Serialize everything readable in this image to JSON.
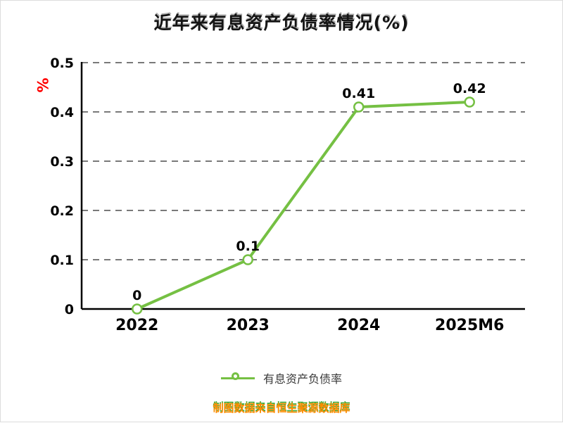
{
  "title": "近年来有息资产负债率情况(%)",
  "footer": "制图数据来自恒生聚源数据库",
  "y_axis_label": "%",
  "legend": {
    "label": "有息资产负债率"
  },
  "chart_data": {
    "type": "line",
    "title": "近年来有息资产负债率情况(%)",
    "categories": [
      "2022",
      "2023",
      "2024",
      "2025M6"
    ],
    "series": [
      {
        "name": "有息资产负债率",
        "values": [
          0,
          0.1,
          0.41,
          0.42
        ],
        "point_labels": [
          "0",
          "0.1",
          "0.41",
          "0.42"
        ],
        "color": "#75c043"
      }
    ],
    "xlabel": "",
    "ylabel": "%",
    "ylim": [
      0,
      0.5
    ],
    "yticks": [
      0,
      0.1,
      0.2,
      0.3,
      0.4,
      0.5
    ],
    "ytick_labels": [
      "0",
      "0.1",
      "0.2",
      "0.3",
      "0.4",
      "0.5"
    ],
    "grid": "horizontal-dashed",
    "legend_position": "bottom",
    "colors": {
      "line": "#75c043",
      "marker_fill": "#ffffff",
      "axis": "#000000",
      "grid": "#4d4d4d",
      "ylabel": "#ff0000",
      "footer": "#ff8c00",
      "footer_shadow": "#3aaa35"
    }
  }
}
